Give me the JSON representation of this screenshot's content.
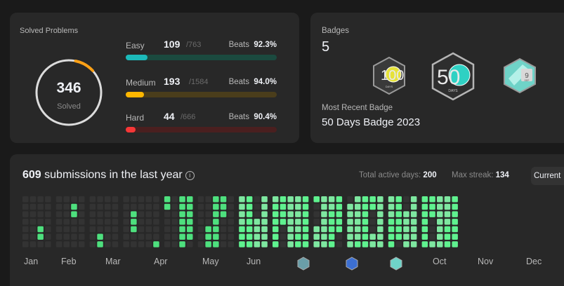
{
  "solved": {
    "title": "Solved Problems",
    "count": "346",
    "label": "Solved",
    "difficulties": [
      {
        "name": "Easy",
        "solved": "109",
        "total": "/763",
        "beats_label": "Beats",
        "beats": "92.3%",
        "fraction": 0.143,
        "color": "#1cbaba",
        "track": "#1b4a3f"
      },
      {
        "name": "Medium",
        "solved": "193",
        "total": "/1584",
        "beats_label": "Beats",
        "beats": "94.0%",
        "fraction": 0.122,
        "color": "#ffb700",
        "track": "#4a3d1b"
      },
      {
        "name": "Hard",
        "solved": "44",
        "total": "/666",
        "beats_label": "Beats",
        "beats": "90.4%",
        "fraction": 0.066,
        "color": "#f63737",
        "track": "#4a1f1f"
      }
    ]
  },
  "badges": {
    "label": "Badges",
    "count": "5",
    "items": [
      {
        "name": "100-days-badge",
        "text": "100",
        "sub": "DAYS"
      },
      {
        "name": "50-days-badge",
        "text": "50",
        "sub": "DAYS"
      },
      {
        "name": "sep-badge",
        "text": "9",
        "sub": "SEP"
      }
    ],
    "recent_label": "Most Recent Badge",
    "recent_name": "50 Days Badge 2023"
  },
  "submissions": {
    "count": "609",
    "text": "submissions in the last year",
    "info_icon": "info-icon",
    "active_label": "Total active days:",
    "active_value": "200",
    "streak_label": "Max streak:",
    "streak_value": "134",
    "current_label": "Current",
    "months": [
      "Jan",
      "Feb",
      "Mar",
      "Apr",
      "May",
      "Jun",
      "Oct",
      "Nov",
      "Dec"
    ],
    "colors": {
      "empty": "#333333",
      "level1": "#0e4429",
      "level2": "#7ee7a0",
      "level3": "#4ee07e",
      "level4": "#5ff28f"
    }
  }
}
